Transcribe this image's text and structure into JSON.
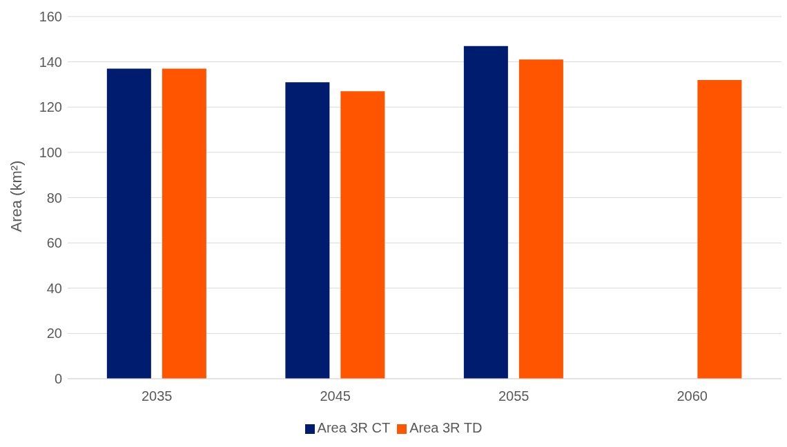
{
  "chart_data": {
    "type": "bar",
    "ylabel": "Area (km²)",
    "categories": [
      "2035",
      "2045",
      "2055",
      "2060"
    ],
    "series": [
      {
        "name": "Area 3R CT",
        "color": "#001c6e",
        "values": [
          137,
          131,
          147,
          null
        ]
      },
      {
        "name": "Area 3R TD",
        "color": "#ff5500",
        "values": [
          137,
          127,
          141,
          132
        ]
      }
    ],
    "ylim": [
      0,
      160
    ],
    "yticks": [
      0,
      20,
      40,
      60,
      80,
      100,
      120,
      140,
      160
    ],
    "grid": "y",
    "legend": "bottom"
  }
}
